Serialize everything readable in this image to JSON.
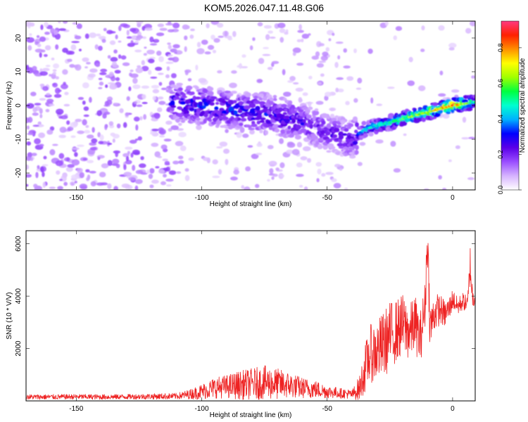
{
  "title": "KOM5.2026.047.11.48.G06",
  "chart_data": [
    {
      "type": "heatmap",
      "name": "spectrogram",
      "xlabel": "Height of straight line (km)",
      "ylabel": "Frequency (Hz)",
      "xlim": [
        -170,
        9
      ],
      "ylim": [
        -25,
        25
      ],
      "xticks": [
        -150,
        -100,
        -50,
        0
      ],
      "yticks": [
        -20,
        -10,
        0,
        10,
        20
      ],
      "colorbar": {
        "label": "Normalized spectral amplitude",
        "range": [
          0.0,
          0.95
        ],
        "ticks": [
          0.0,
          0.2,
          0.4,
          0.6,
          0.8
        ],
        "tick_labels": [
          "0.0",
          "0.2",
          "0.4",
          "0.6",
          "0.8"
        ],
        "colors": [
          "#ffffff",
          "#d6b3ff",
          "#9a4dff",
          "#5a00e8",
          "#0000ff",
          "#00b0ff",
          "#00ffd0",
          "#00ff40",
          "#a0ff00",
          "#ffff00",
          "#ff9000",
          "#ff2000",
          "#ff3a80"
        ]
      },
      "ridge": {
        "description": "frequency trend of strongest signal",
        "x": [
          -110,
          -100,
          -90,
          -80,
          -70,
          -60,
          -50,
          -40,
          -35,
          -30,
          -20,
          -10,
          0,
          9
        ],
        "freq": [
          1,
          0,
          -1,
          -2,
          -3,
          -5,
          -8,
          -10,
          -7,
          -6,
          -4,
          -2,
          0,
          1
        ],
        "amplitude": [
          0.3,
          0.35,
          0.35,
          0.35,
          0.3,
          0.3,
          0.25,
          0.28,
          0.45,
          0.5,
          0.6,
          0.72,
          0.92,
          0.5
        ]
      }
    },
    {
      "type": "line",
      "name": "snr",
      "xlabel": "Height of straight line (km)",
      "ylabel": "SNR (10 * V/V)",
      "xlim": [
        -170,
        9
      ],
      "ylim": [
        0,
        6500
      ],
      "xticks": [
        -150,
        -100,
        -50,
        0
      ],
      "yticks": [
        2000,
        4000,
        6000
      ],
      "color": "#ee2222",
      "series": [
        {
          "name": "SNR",
          "x": [
            -170,
            -160,
            -150,
            -140,
            -130,
            -120,
            -110,
            -105,
            -100,
            -95,
            -90,
            -85,
            -80,
            -75,
            -70,
            -65,
            -60,
            -55,
            -50,
            -45,
            -40,
            -37,
            -35,
            -33,
            -30,
            -27,
            -25,
            -22,
            -20,
            -17,
            -15,
            -13,
            -11,
            -10,
            -9,
            -7,
            -5,
            -3,
            -1,
            0,
            2,
            4,
            6,
            7,
            8,
            9
          ],
          "y": [
            150,
            150,
            160,
            150,
            160,
            170,
            180,
            250,
            350,
            500,
            550,
            600,
            650,
            700,
            650,
            600,
            500,
            450,
            350,
            300,
            250,
            500,
            1200,
            1800,
            1900,
            2200,
            2500,
            2700,
            2900,
            2600,
            3000,
            2300,
            3600,
            6300,
            2800,
            3400,
            3500,
            3300,
            3600,
            3900,
            3600,
            3800,
            3700,
            5200,
            3900,
            4000
          ],
          "spread": [
            100,
            100,
            100,
            100,
            100,
            110,
            120,
            180,
            300,
            400,
            450,
            550,
            600,
            650,
            600,
            500,
            400,
            350,
            250,
            200,
            180,
            500,
            900,
            1100,
            1200,
            1300,
            1300,
            1200,
            1200,
            1100,
            1100,
            1000,
            1000,
            1000,
            900,
            700,
            600,
            500,
            450,
            400,
            350,
            350,
            300,
            800,
            500,
            300
          ]
        }
      ]
    }
  ]
}
